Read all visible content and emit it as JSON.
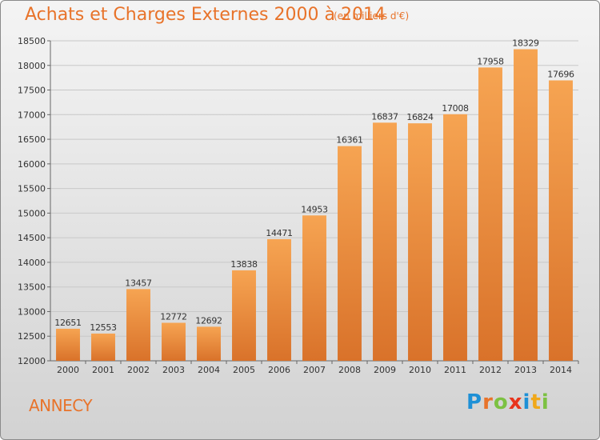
{
  "title": "Achats et Charges Externes 2000 à 2014",
  "subtitle": "(en milliers d'€)",
  "town": "ANNECY",
  "logo": {
    "text": "Proxiti",
    "letters": [
      {
        "ch": "P",
        "color": "#1e90d6"
      },
      {
        "ch": "r",
        "color": "#e8732a"
      },
      {
        "ch": "o",
        "color": "#7cc142"
      },
      {
        "ch": "x",
        "color": "#e8341c"
      },
      {
        "ch": "i",
        "color": "#1e90d6"
      },
      {
        "ch": "t",
        "color": "#f0a81a"
      },
      {
        "ch": "i",
        "color": "#7cc142"
      }
    ]
  },
  "colors": {
    "accent": "#e8732a",
    "bar_top": "#f6a452",
    "bar_bottom": "#d9722a",
    "grid": "#c8c8c8",
    "axis_text": "#333333"
  },
  "chart_data": {
    "type": "bar",
    "categories": [
      "2000",
      "2001",
      "2002",
      "2003",
      "2004",
      "2005",
      "2006",
      "2007",
      "2008",
      "2009",
      "2010",
      "2011",
      "2012",
      "2013",
      "2014"
    ],
    "values": [
      12651,
      12553,
      13457,
      12772,
      12692,
      13838,
      14471,
      14953,
      16361,
      16837,
      16824,
      17008,
      17958,
      18329,
      17696
    ],
    "data_labels": [
      "12651",
      "12553",
      "13457",
      "12772",
      "12692",
      "13838",
      "14471",
      "14953",
      "16361",
      "16837",
      "16824",
      "17008",
      "17958",
      "18329",
      "17696"
    ],
    "ylim": [
      12000,
      18500
    ],
    "yticks": [
      12000,
      12500,
      13000,
      13500,
      14000,
      14500,
      15000,
      15500,
      16000,
      16500,
      17000,
      17500,
      18000,
      18500
    ],
    "ytick_labels": [
      "12000",
      "12500",
      "13000",
      "13500",
      "14000",
      "14500",
      "15000",
      "15500",
      "16000",
      "16500",
      "17000",
      "17500",
      "18000",
      "18500"
    ],
    "grid": true,
    "legend": "none"
  }
}
